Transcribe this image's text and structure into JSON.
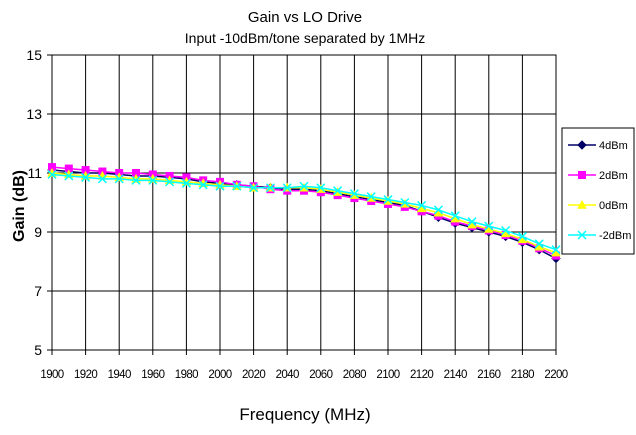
{
  "chart_data": {
    "type": "line",
    "title": "Gain vs LO Drive",
    "subtitle": "Input -10dBm/tone separated by 1MHz",
    "xlabel": "Frequency (MHz)",
    "ylabel": "Gain (dB)",
    "xlim": [
      1900,
      2200
    ],
    "ylim": [
      5,
      15
    ],
    "x_ticks": [
      "1900",
      "1920",
      "1940",
      "1960",
      "1980",
      "2000",
      "2020",
      "2040",
      "2060",
      "2080",
      "2100",
      "2120",
      "2140",
      "2160",
      "2180",
      "2200"
    ],
    "y_ticks": [
      "5",
      "7",
      "9",
      "11",
      "13",
      "15"
    ],
    "grid": true,
    "legend_position": "right",
    "x": [
      1900,
      1910,
      1920,
      1930,
      1940,
      1950,
      1960,
      1970,
      1980,
      1990,
      2000,
      2010,
      2020,
      2030,
      2040,
      2050,
      2060,
      2070,
      2080,
      2090,
      2100,
      2110,
      2120,
      2130,
      2140,
      2150,
      2160,
      2170,
      2180,
      2190,
      2200
    ],
    "series": [
      {
        "name": "4dBm",
        "color": "#000066",
        "marker": "diamond",
        "values": [
          11.1,
          11.05,
          11.0,
          11.0,
          10.95,
          10.9,
          10.9,
          10.85,
          10.8,
          10.7,
          10.65,
          10.6,
          10.55,
          10.5,
          10.45,
          10.45,
          10.4,
          10.3,
          10.2,
          10.1,
          10.0,
          9.9,
          9.7,
          9.5,
          9.3,
          9.15,
          9.0,
          8.85,
          8.65,
          8.4,
          8.1
        ]
      },
      {
        "name": "2dBm",
        "color": "#ff00ff",
        "marker": "square",
        "values": [
          11.2,
          11.15,
          11.1,
          11.05,
          11.0,
          11.0,
          10.95,
          10.9,
          10.85,
          10.75,
          10.7,
          10.6,
          10.55,
          10.45,
          10.4,
          10.4,
          10.35,
          10.25,
          10.15,
          10.05,
          9.95,
          9.85,
          9.7,
          9.55,
          9.35,
          9.2,
          9.05,
          8.9,
          8.7,
          8.45,
          8.2
        ]
      },
      {
        "name": "0dBm",
        "color": "#ffff00",
        "marker": "triangle",
        "values": [
          11.0,
          10.95,
          10.9,
          10.9,
          10.85,
          10.8,
          10.8,
          10.75,
          10.7,
          10.65,
          10.6,
          10.55,
          10.5,
          10.5,
          10.5,
          10.5,
          10.45,
          10.35,
          10.25,
          10.15,
          10.05,
          9.95,
          9.8,
          9.65,
          9.45,
          9.25,
          9.1,
          8.95,
          8.75,
          8.5,
          8.3
        ]
      },
      {
        "name": "-2dBm",
        "color": "#00ffff",
        "marker": "x",
        "values": [
          10.95,
          10.9,
          10.85,
          10.8,
          10.8,
          10.75,
          10.75,
          10.7,
          10.65,
          10.6,
          10.55,
          10.55,
          10.5,
          10.5,
          10.5,
          10.55,
          10.5,
          10.4,
          10.3,
          10.2,
          10.1,
          10.0,
          9.9,
          9.75,
          9.55,
          9.35,
          9.2,
          9.05,
          8.85,
          8.6,
          8.4
        ]
      }
    ]
  }
}
